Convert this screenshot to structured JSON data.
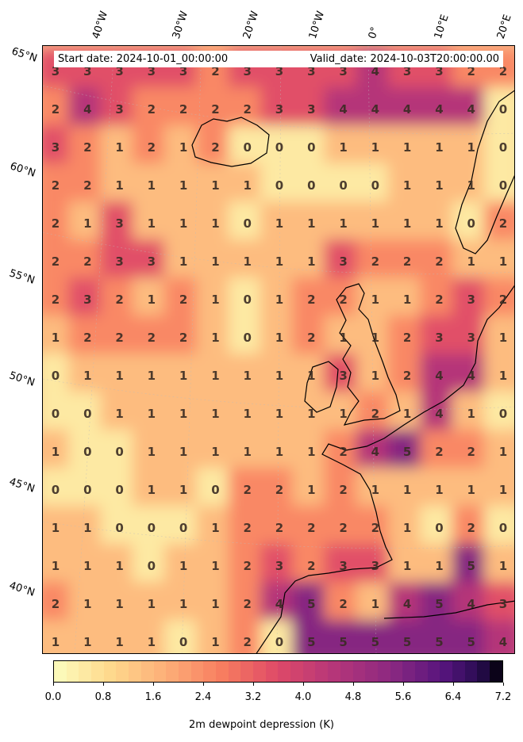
{
  "map": {
    "lat_labels": [
      "65°N",
      "60°N",
      "55°N",
      "50°N",
      "45°N",
      "40°N"
    ],
    "lon_labels": [
      "40°W",
      "30°W",
      "20°W",
      "10°W",
      "0°",
      "10°E",
      "20°E"
    ],
    "start_date": "Start date: 2024-10-01_00:00:00",
    "valid_date": "Valid_date: 2024-10-03T20:00:00.00",
    "grid_values": [
      [
        "3",
        "3",
        "3",
        "3",
        "3",
        "2",
        "3",
        "3",
        "3",
        "3",
        "4",
        "3",
        "3",
        "2",
        "2"
      ],
      [
        "2",
        "4",
        "3",
        "2",
        "2",
        "2",
        "2",
        "3",
        "3",
        "4",
        "4",
        "4",
        "4",
        "4",
        "0"
      ],
      [
        "3",
        "2",
        "1",
        "2",
        "1",
        "2",
        "0",
        "0",
        "0",
        "1",
        "1",
        "1",
        "1",
        "1",
        "0"
      ],
      [
        "2",
        "2",
        "1",
        "1",
        "1",
        "1",
        "1",
        "0",
        "0",
        "0",
        "0",
        "1",
        "1",
        "1",
        "0"
      ],
      [
        "2",
        "1",
        "3",
        "1",
        "1",
        "1",
        "0",
        "1",
        "1",
        "1",
        "1",
        "1",
        "1",
        "0",
        "2"
      ],
      [
        "2",
        "2",
        "3",
        "3",
        "1",
        "1",
        "1",
        "1",
        "1",
        "3",
        "2",
        "2",
        "2",
        "1",
        "1"
      ],
      [
        "2",
        "3",
        "2",
        "1",
        "2",
        "1",
        "0",
        "1",
        "2",
        "2",
        "1",
        "1",
        "2",
        "3",
        "2"
      ],
      [
        "1",
        "2",
        "2",
        "2",
        "2",
        "1",
        "0",
        "1",
        "2",
        "1",
        "1",
        "2",
        "3",
        "3",
        "1"
      ],
      [
        "0",
        "1",
        "1",
        "1",
        "1",
        "1",
        "1",
        "1",
        "1",
        "3",
        "1",
        "2",
        "4",
        "4",
        "1"
      ],
      [
        "0",
        "0",
        "1",
        "1",
        "1",
        "1",
        "1",
        "1",
        "1",
        "1",
        "2",
        "1",
        "4",
        "1",
        "0"
      ],
      [
        "1",
        "0",
        "0",
        "1",
        "1",
        "1",
        "1",
        "1",
        "1",
        "2",
        "4",
        "5",
        "2",
        "2",
        "1"
      ],
      [
        "0",
        "0",
        "0",
        "1",
        "1",
        "0",
        "2",
        "2",
        "1",
        "2",
        "1",
        "1",
        "1",
        "1",
        "1"
      ],
      [
        "1",
        "1",
        "0",
        "0",
        "0",
        "1",
        "2",
        "2",
        "2",
        "2",
        "2",
        "1",
        "0",
        "2",
        "0"
      ],
      [
        "1",
        "1",
        "1",
        "0",
        "1",
        "1",
        "2",
        "3",
        "2",
        "3",
        "3",
        "1",
        "1",
        "5",
        "1"
      ],
      [
        "2",
        "1",
        "1",
        "1",
        "1",
        "1",
        "2",
        "4",
        "5",
        "2",
        "1",
        "4",
        "5",
        "4",
        "3"
      ],
      [
        "1",
        "1",
        "1",
        "1",
        "0",
        "1",
        "2",
        "0",
        "5",
        "5",
        "5",
        "5",
        "5",
        "5",
        "4"
      ]
    ],
    "colors": {
      "low": "#fcefad",
      "mid": "#f37a5e",
      "high": "#5b1f78",
      "max": "#000004",
      "coast": "#000000"
    }
  },
  "colorbar": {
    "label": "2m dewpoint depression (K)",
    "ticks": [
      "0.0",
      "0.8",
      "1.6",
      "2.4",
      "3.2",
      "4.0",
      "4.8",
      "5.6",
      "6.4",
      "7.2"
    ],
    "range": [
      0,
      7.2
    ],
    "colormap": "magma_r"
  }
}
